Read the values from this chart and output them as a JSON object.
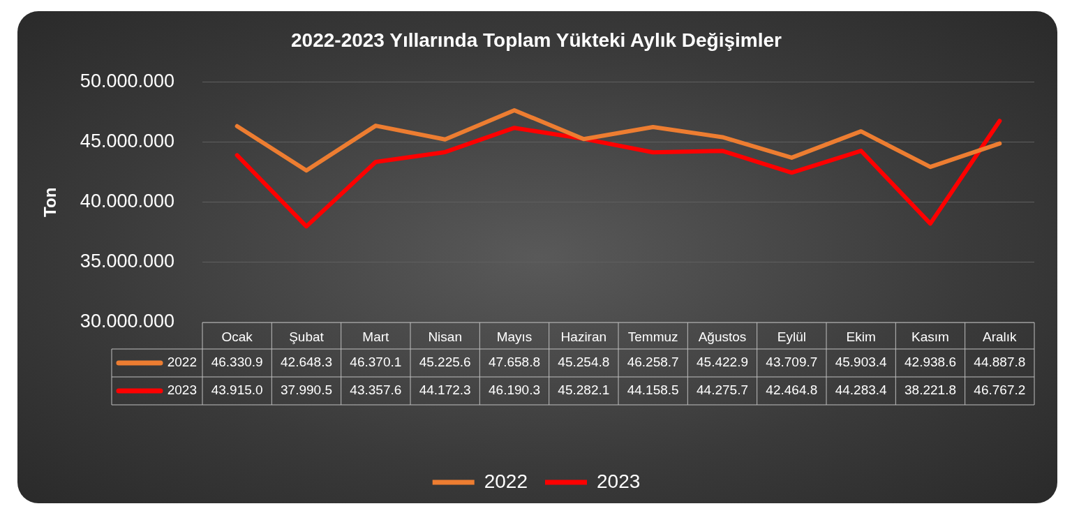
{
  "chart_data": {
    "type": "line",
    "title": "2022-2023 Yıllarında Toplam Yükteki Aylık Değişimler",
    "ylabel": "Ton",
    "categories": [
      "Ocak",
      "Şubat",
      "Mart",
      "Nisan",
      "Mayıs",
      "Haziran",
      "Temmuz",
      "Ağustos",
      "Eylül",
      "Ekim",
      "Kasım",
      "Aralık"
    ],
    "series": [
      {
        "name": "2022",
        "color": "#ed7d31",
        "values": [
          46330900,
          42648300,
          46370100,
          45225600,
          47658800,
          45254800,
          46258700,
          45422900,
          43709700,
          45903400,
          42938600,
          44887800
        ],
        "value_labels": [
          "46.330.9",
          "42.648.3",
          "46.370.1",
          "45.225.6",
          "47.658.8",
          "45.254.8",
          "46.258.7",
          "45.422.9",
          "43.709.7",
          "45.903.4",
          "42.938.6",
          "44.887.8"
        ]
      },
      {
        "name": "2023",
        "color": "#ff0000",
        "values": [
          43915000,
          37990500,
          43357600,
          44172300,
          46190300,
          45282100,
          44158500,
          44275700,
          42464800,
          44283400,
          38221800,
          46767200
        ],
        "value_labels": [
          "43.915.0",
          "37.990.5",
          "43.357.6",
          "44.172.3",
          "46.190.3",
          "45.282.1",
          "44.158.5",
          "44.275.7",
          "42.464.8",
          "44.283.4",
          "38.221.8",
          "46.767.2"
        ]
      }
    ],
    "ylim": [
      30000000,
      50000000
    ],
    "yticks": [
      {
        "value": 30000000,
        "label": "30.000.000"
      },
      {
        "value": 35000000,
        "label": "35.000.000"
      },
      {
        "value": 40000000,
        "label": "40.000.000"
      },
      {
        "value": 45000000,
        "label": "45.000.000"
      },
      {
        "value": 50000000,
        "label": "50.000.000"
      }
    ],
    "grid": "y",
    "legend": "bottom"
  }
}
